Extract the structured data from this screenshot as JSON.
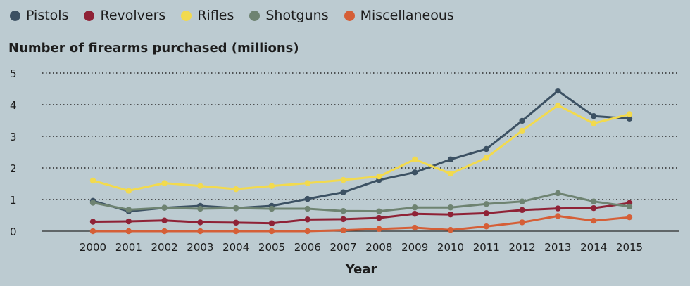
{
  "chart_data": {
    "type": "line",
    "ylabel": "Number of firearms purchased (millions)",
    "xlabel": "Year",
    "ylim": [
      0,
      5
    ],
    "yticks": [
      0,
      1,
      2,
      3,
      4,
      5
    ],
    "grid": true,
    "legend_position": "top-left",
    "x": [
      "2000",
      "2001",
      "2002",
      "2003",
      "2004",
      "2005",
      "2006",
      "2007",
      "2008",
      "2009",
      "2010",
      "2011",
      "2012",
      "2013",
      "2014",
      "2015"
    ],
    "series": [
      {
        "name": "Pistols",
        "color": "#3c5163",
        "values": [
          0.96,
          0.63,
          0.74,
          0.8,
          0.73,
          0.8,
          1.02,
          1.23,
          1.62,
          1.86,
          2.27,
          2.6,
          3.49,
          4.44,
          3.64,
          3.56
        ]
      },
      {
        "name": "Revolvers",
        "color": "#8f2236",
        "values": [
          0.3,
          0.31,
          0.34,
          0.28,
          0.27,
          0.25,
          0.37,
          0.38,
          0.42,
          0.55,
          0.53,
          0.57,
          0.67,
          0.72,
          0.73,
          0.89
        ]
      },
      {
        "name": "Rifles",
        "color": "#f2da4e",
        "values": [
          1.6,
          1.28,
          1.52,
          1.43,
          1.33,
          1.43,
          1.52,
          1.62,
          1.73,
          2.27,
          1.82,
          2.32,
          3.18,
          3.98,
          3.41,
          3.7
        ]
      },
      {
        "name": "Shotguns",
        "color": "#6e8371",
        "values": [
          0.9,
          0.68,
          0.74,
          0.71,
          0.73,
          0.71,
          0.71,
          0.64,
          0.63,
          0.75,
          0.75,
          0.86,
          0.94,
          1.2,
          0.94,
          0.78
        ]
      },
      {
        "name": "Miscellaneous",
        "color": "#d55f37",
        "values": [
          0.0,
          0.0,
          0.0,
          0.0,
          0.0,
          0.0,
          0.0,
          0.03,
          0.07,
          0.11,
          0.04,
          0.15,
          0.28,
          0.48,
          0.33,
          0.44
        ]
      }
    ]
  }
}
